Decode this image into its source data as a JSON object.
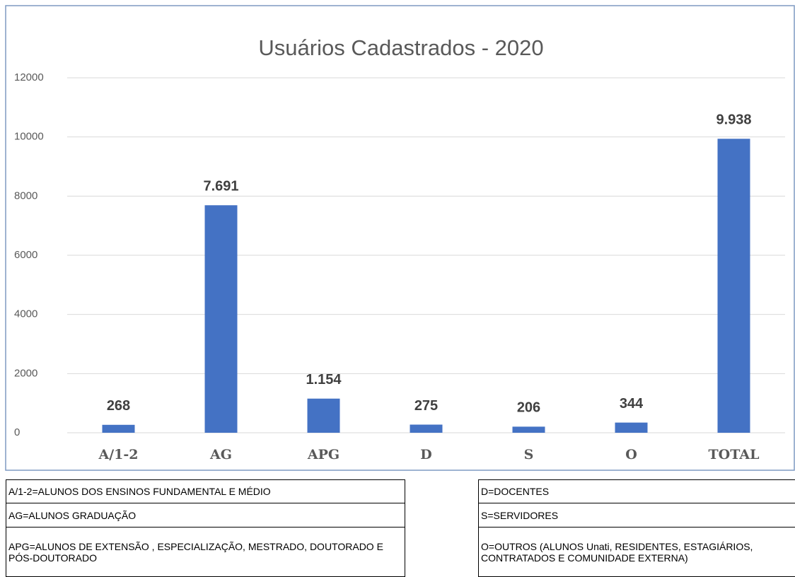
{
  "chart_data": {
    "type": "bar",
    "title": "Usuários Cadastrados - 2020",
    "categories": [
      "A/1-2",
      "AG",
      "APG",
      "D",
      "S",
      "O",
      "TOTAL"
    ],
    "values": [
      268,
      7691,
      1154,
      275,
      206,
      344,
      9938
    ],
    "value_labels": [
      "268",
      "7.691",
      "1.154",
      "275",
      "206",
      "344",
      "9.938"
    ],
    "color": "#4472c4",
    "ylim": [
      0,
      12000
    ],
    "yticks": [
      0,
      2000,
      4000,
      6000,
      8000,
      10000,
      12000
    ],
    "grid": true
  },
  "notes": {
    "left": [
      "A/1-2=ALUNOS DOS ENSINOS FUNDAMENTAL E MÉDIO",
      "AG=ALUNOS GRADUAÇÃO",
      "APG=ALUNOS DE EXTENSÃO , ESPECIALIZAÇÃO, MESTRADO, DOUTORADO E PÓS-DOUTORADO"
    ],
    "right": [
      "D=DOCENTES",
      "S=SERVIDORES",
      "O=OUTROS (ALUNOS Unati, RESIDENTES, ESTAGIÁRIOS, CONTRATADOS E COMUNIDADE EXTERNA)"
    ]
  }
}
